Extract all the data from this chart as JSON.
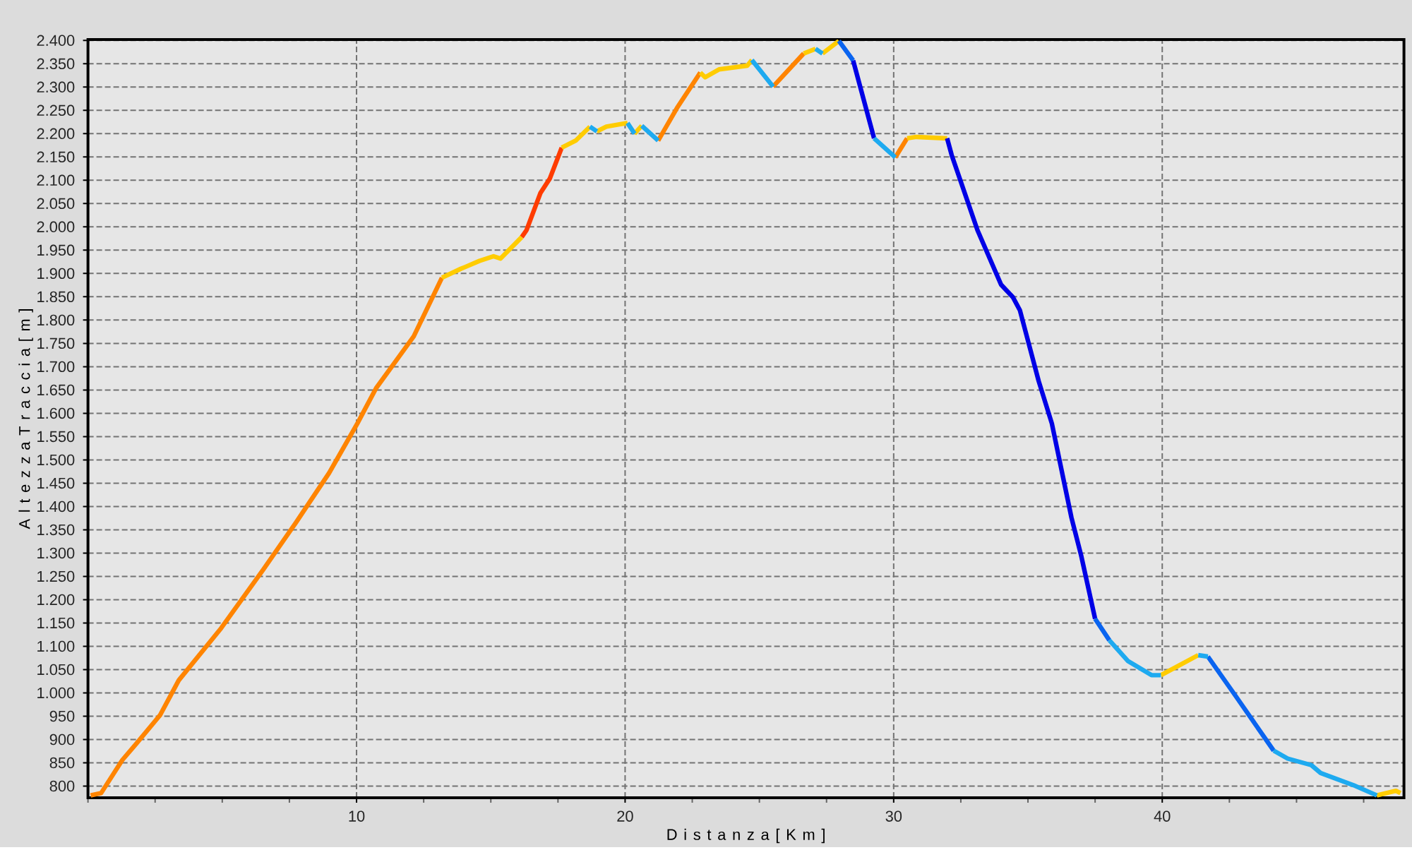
{
  "chart_data": {
    "type": "line",
    "xlabel": "D i s t a n z a [ K m ]",
    "ylabel": "A l t e z z a T r a c c i a [ m ]",
    "xlim": [
      0,
      49
    ],
    "ylim": [
      775,
      2402
    ],
    "xticks": [
      {
        "value": 0,
        "label": null
      },
      {
        "value": 2.5,
        "label": null
      },
      {
        "value": 5,
        "label": null
      },
      {
        "value": 7.5,
        "label": null
      },
      10,
      {
        "value": 12.5,
        "label": null
      },
      {
        "value": 15,
        "label": null
      },
      {
        "value": 17.5,
        "label": null
      },
      20,
      {
        "value": 22.5,
        "label": null
      },
      {
        "value": 25,
        "label": null
      },
      {
        "value": 27.5,
        "label": null
      },
      30,
      {
        "value": 32.5,
        "label": null
      },
      {
        "value": 35,
        "label": null
      },
      {
        "value": 37.5,
        "label": null
      },
      40,
      {
        "value": 42.5,
        "label": null
      },
      {
        "value": 45,
        "label": null
      },
      {
        "value": 47.5,
        "label": null
      }
    ],
    "yticks": [
      800,
      850,
      900,
      950,
      {
        "value": 1000,
        "label": "1.000"
      },
      {
        "value": 1050,
        "label": "1.050"
      },
      {
        "value": 1100,
        "label": "1.100"
      },
      {
        "value": 1150,
        "label": "1.150"
      },
      {
        "value": 1200,
        "label": "1.200"
      },
      {
        "value": 1250,
        "label": "1.250"
      },
      {
        "value": 1300,
        "label": "1.300"
      },
      {
        "value": 1350,
        "label": "1.350"
      },
      {
        "value": 1400,
        "label": "1.400"
      },
      {
        "value": 1450,
        "label": "1.450"
      },
      {
        "value": 1500,
        "label": "1.500"
      },
      {
        "value": 1550,
        "label": "1.550"
      },
      {
        "value": 1600,
        "label": "1.600"
      },
      {
        "value": 1650,
        "label": "1.650"
      },
      {
        "value": 1700,
        "label": "1.700"
      },
      {
        "value": 1750,
        "label": "1.750"
      },
      {
        "value": 1800,
        "label": "1.800"
      },
      {
        "value": 1850,
        "label": "1.850"
      },
      {
        "value": 1900,
        "label": "1.900"
      },
      {
        "value": 1950,
        "label": "1.950"
      },
      {
        "value": 2000,
        "label": "2.000"
      },
      {
        "value": 2050,
        "label": "2.050"
      },
      {
        "value": 2100,
        "label": "2.100"
      },
      {
        "value": 2150,
        "label": "2.150"
      },
      {
        "value": 2200,
        "label": "2.200"
      },
      {
        "value": 2250,
        "label": "2.250"
      },
      {
        "value": 2300,
        "label": "2.300"
      },
      {
        "value": 2350,
        "label": "2.350"
      },
      {
        "value": 2400,
        "label": "2.400"
      }
    ],
    "grid": true,
    "series": [
      {
        "color": "#ff8400",
        "x": [
          0.1,
          0.49,
          1.28,
          1.8,
          2.68,
          3.38,
          4.96,
          6.53,
          7.75,
          8.98,
          10.03,
          10.73,
          12.13,
          13.18,
          17,
          21.23,
          21.93,
          22.8,
          24,
          25.51,
          26.65,
          28,
          30.06,
          30.5
        ],
        "values": [
          780,
          785,
          856,
          891,
          952,
          1027,
          1139,
          1265,
          1366,
          1472,
          1578,
          1654,
          1765,
          1891,
          null,
          2185,
          2255,
          2331,
          null,
          2301,
          2372,
          null,
          2149,
          2190
        ]
      },
      {
        "color": "#ff3c00",
        "x": [
          16.15,
          16.33,
          16.85,
          17.2,
          17.64
        ],
        "values": [
          1978,
          1993,
          2073,
          2104,
          2170
        ]
      },
      {
        "color": "#ffcc00",
        "x": [
          13.18,
          13.88,
          14.05,
          14.58,
          15.1,
          15.36,
          16.15,
          16.9,
          17.64,
          18.16,
          18.69,
          18.8,
          18.95,
          19.3,
          20.09,
          20.2,
          20.35,
          20.62,
          21.8,
          22.8,
          22.98,
          23.5,
          24.55,
          24.72,
          25.6,
          26.65,
          27.09,
          27.2,
          27.35,
          27.96,
          29,
          30.5,
          30.85,
          31.99,
          36,
          39.95,
          41.34,
          45,
          47.99,
          48.7,
          48.87
        ],
        "values": [
          1891,
          1910,
          1914,
          1927,
          1937,
          1932,
          1978,
          null,
          2170,
          2185,
          2215,
          null,
          2205,
          2215,
          2223,
          null,
          2200,
          2217,
          null,
          2331,
          2321,
          2338,
          2346,
          2358,
          null,
          2372,
          2382,
          null,
          2372,
          2399,
          null,
          2190,
          2193,
          2190,
          null,
          1038,
          1081,
          null,
          780,
          790,
          785
        ]
      },
      {
        "color": "#0000e6",
        "x": [
          28.49,
          29.27,
          30.5,
          31.99,
          32.16,
          33.12,
          34.0,
          34.44,
          34.7,
          35.4,
          35.89,
          36.62,
          36.98,
          37.5
        ],
        "values": [
          2357,
          2190,
          null,
          2190,
          2154,
          1993,
          1876,
          1849,
          1821,
          1669,
          1578,
          1376,
          1295,
          1159
        ]
      },
      {
        "color": "#0a64f0",
        "x": [
          27.96,
          28.49,
          33,
          37.5,
          38.03,
          40,
          41.7,
          42.75,
          44.15
        ],
        "values": [
          2399,
          2357,
          null,
          1159,
          1113,
          null,
          1078,
          992,
          876
        ]
      },
      {
        "color": "#1eaaf0",
        "x": [
          18.69,
          18.95,
          19.5,
          20.09,
          20.35,
          20.5,
          20.62,
          21.23,
          23.8,
          24.72,
          25.51,
          26.3,
          27.09,
          27.35,
          28.3,
          29.27,
          30.06,
          34,
          38.03,
          38.73,
          39.6,
          39.95,
          40.6,
          41.34,
          41.7,
          43,
          44.15,
          44.67,
          45.55,
          45.9,
          47.12,
          47.99
        ],
        "values": [
          2215,
          2205,
          null,
          2223,
          2200,
          null,
          2217,
          2185,
          null,
          2358,
          2301,
          null,
          2382,
          2372,
          null,
          2190,
          2149,
          null,
          1113,
          1068,
          1038,
          1038,
          null,
          1081,
          1078,
          null,
          876,
          859,
          845,
          828,
          802,
          780
        ]
      }
    ]
  }
}
